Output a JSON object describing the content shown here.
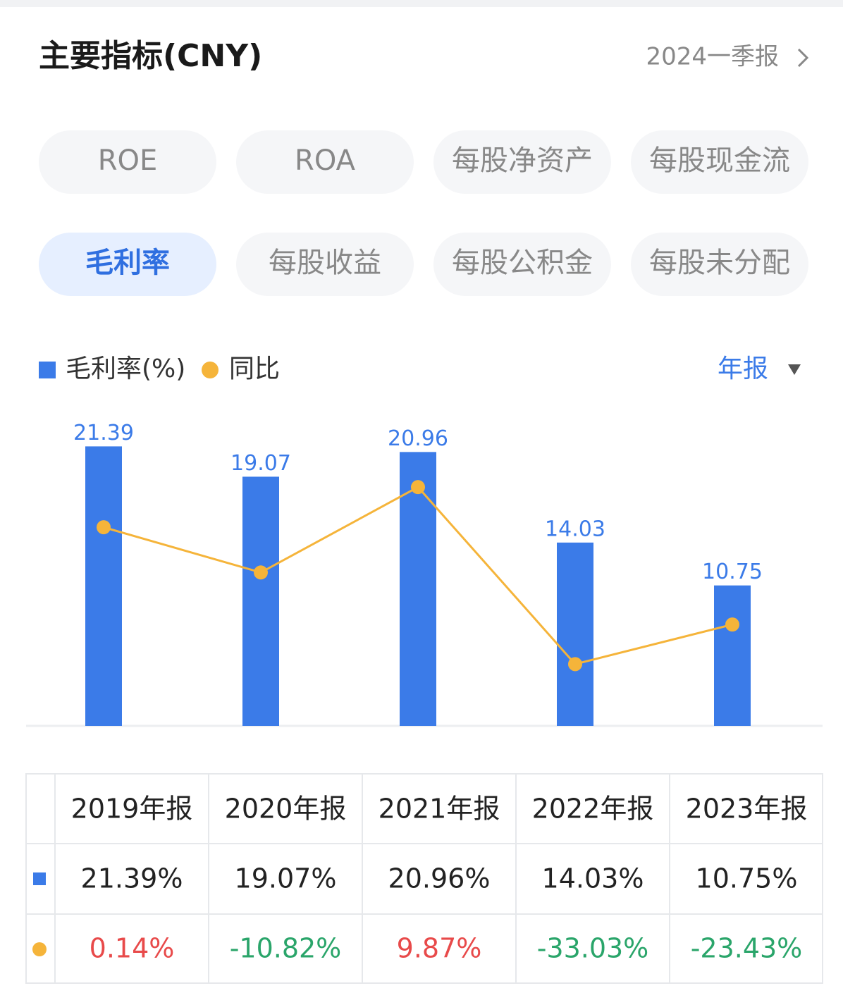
{
  "header": {
    "title": "主要指标(CNY)",
    "period": "2024一季报"
  },
  "tabs": [
    "ROE",
    "ROA",
    "每股净资产",
    "每股现金流",
    "毛利率",
    "每股收益",
    "每股公积金",
    "每股未分配"
  ],
  "active_tab": 4,
  "report_selector": "年报",
  "chart_data": {
    "type": "bar",
    "categories": [
      "2019年报",
      "2020年报",
      "2021年报",
      "2022年报",
      "2023年报"
    ],
    "series": [
      {
        "name": "毛利率(%)",
        "color": "#3b7be8",
        "values": [
          21.39,
          19.07,
          20.96,
          14.03,
          10.75
        ]
      },
      {
        "name": "同比",
        "color": "#f5b43a",
        "type": "line",
        "axis": "y2",
        "values": [
          0.14,
          -10.82,
          9.87,
          -33.03,
          -23.43
        ]
      }
    ],
    "ylim": [
      0,
      24
    ],
    "y2lim": [
      -48,
      28
    ],
    "grid": false
  },
  "table": {
    "rows": [
      [
        "21.39%",
        "19.07%",
        "20.96%",
        "14.03%",
        "10.75%"
      ],
      [
        "0.14%",
        "-10.82%",
        "9.87%",
        "-33.03%",
        "-23.43%"
      ]
    ],
    "positive_color": "#e84a4a",
    "negative_color": "#2aa56a"
  }
}
